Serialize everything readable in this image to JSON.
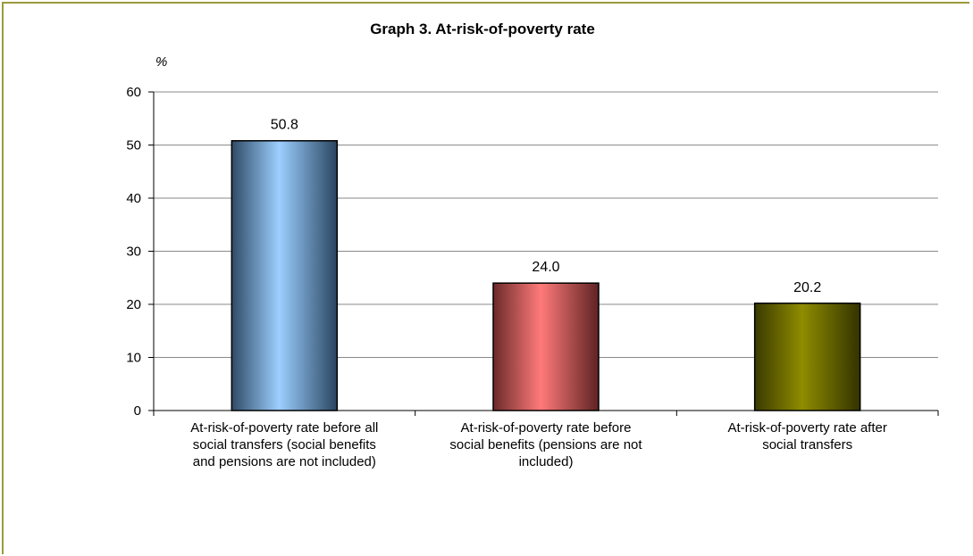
{
  "chart_data": {
    "type": "bar",
    "title": "Graph 3. At-risk-of-poverty rate",
    "unit_label": "%",
    "categories": [
      [
        "At-risk-of-poverty rate before all",
        "social transfers (social benefits",
        "and pensions are not included)"
      ],
      [
        "At-risk-of-poverty rate before",
        "social benefits (pensions are not",
        "included)"
      ],
      [
        "At-risk-of-poverty rate  after",
        "social transfers"
      ]
    ],
    "values": [
      50.8,
      24.0,
      20.2
    ],
    "value_labels": [
      "50.8",
      "24.0",
      "20.2"
    ],
    "bar_colors": [
      "#9ccfff",
      "#ff7a7a",
      "#8f8c00"
    ],
    "ylim": [
      0,
      60
    ],
    "yticks": [
      0,
      10,
      20,
      30,
      40,
      50,
      60
    ],
    "grid": true,
    "xlabel": "",
    "ylabel": ""
  },
  "colors": {
    "frame_border": "#9c9a3c",
    "gridline": "#8a8a8a"
  }
}
